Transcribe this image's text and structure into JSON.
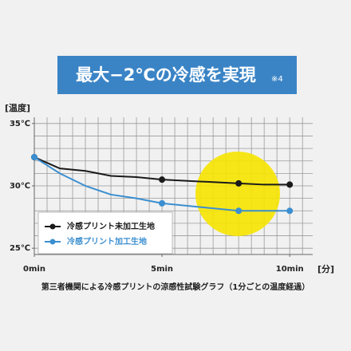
{
  "chart_data": {
    "type": "line",
    "title": "最大−2℃の冷感を実現",
    "title_note": "※4",
    "y_label": "[温度]",
    "x_label": "[分]",
    "caption": "第三者機関による冷感プリントの涼感性試験グラフ（1分ごとの温度経過）",
    "x": [
      0,
      1,
      2,
      3,
      4,
      5,
      6,
      7,
      8,
      9,
      10
    ],
    "marker_x": [
      0,
      5,
      8,
      10
    ],
    "series": [
      {
        "name": "冷感プリント未加工生地",
        "color": "#1a1a1a",
        "values": [
          32.3,
          31.4,
          31.2,
          30.8,
          30.7,
          30.5,
          30.4,
          30.3,
          30.2,
          30.1,
          30.1
        ]
      },
      {
        "name": "冷感プリント加工生地",
        "color": "#3b8fd0",
        "values": [
          32.3,
          31.0,
          30.0,
          29.3,
          29.0,
          28.6,
          28.4,
          28.2,
          28.0,
          28.0,
          28.0
        ]
      }
    ],
    "xlim": [
      0,
      10.9
    ],
    "ylim": [
      24.5,
      35.5
    ],
    "xticks": [
      {
        "value": 0,
        "label": "0min"
      },
      {
        "value": 5,
        "label": "5min"
      },
      {
        "value": 10,
        "label": "10min"
      }
    ],
    "yticks": [
      {
        "value": 25,
        "label": "25℃"
      },
      {
        "value": 30,
        "label": "30℃"
      },
      {
        "value": 35,
        "label": "35℃"
      }
    ],
    "xgrid": [
      0,
      0.5,
      1,
      1.5,
      2,
      2.5,
      3,
      3.5,
      4,
      4.5,
      5,
      5.5,
      6,
      6.5,
      7,
      7.5,
      8,
      8.5,
      9,
      9.5,
      10,
      10.5
    ],
    "ygrid": [
      25,
      26,
      27,
      28,
      29,
      30,
      31,
      32,
      33,
      34,
      35
    ],
    "grid": true
  }
}
